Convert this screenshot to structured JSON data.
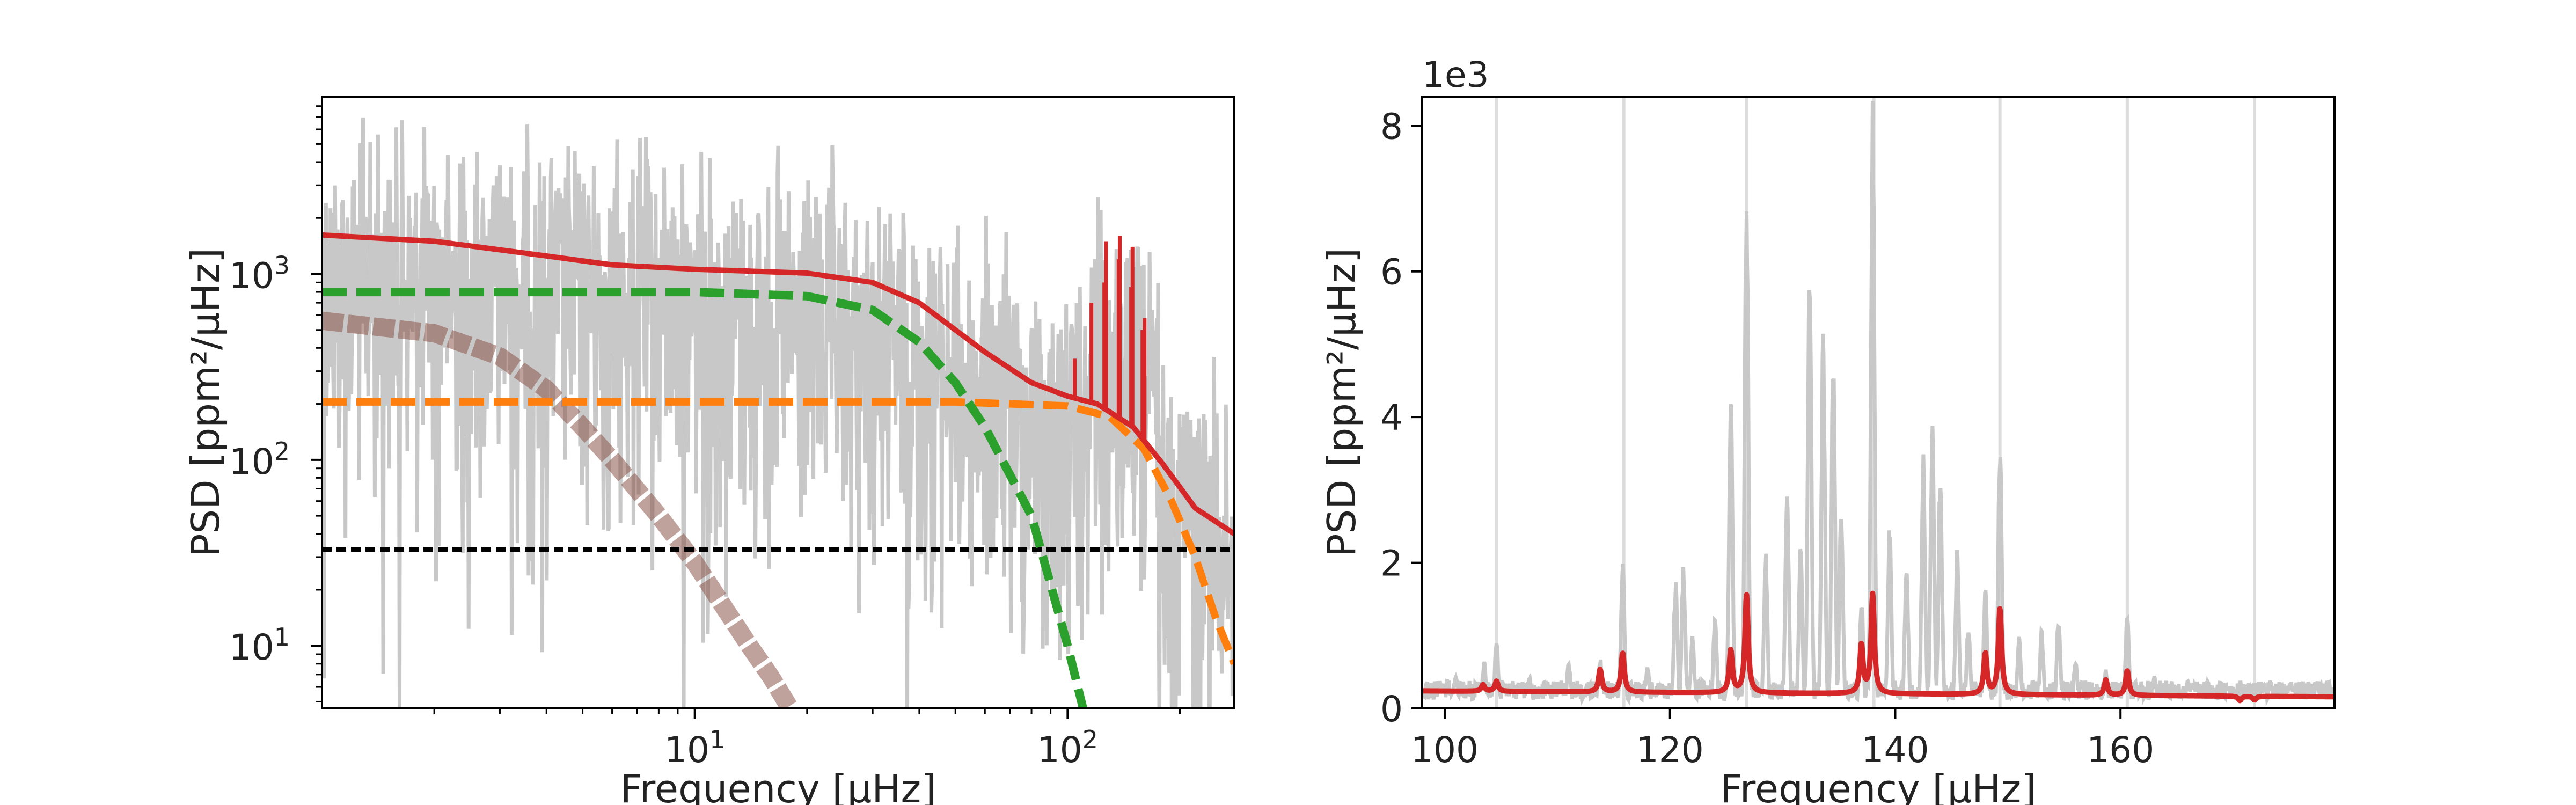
{
  "chart_data": [
    {
      "type": "line",
      "xscale": "log",
      "yscale": "log",
      "xlim": [
        1,
        280
      ],
      "ylim": [
        4.6,
        9000
      ],
      "xlabel": "Frequency [μHz]",
      "ylabel": "PSD [ppm²/μHz]",
      "xticks": [
        {
          "value": 10,
          "base": "10",
          "exp": "1"
        },
        {
          "value": 100,
          "base": "10",
          "exp": "2"
        }
      ],
      "yticks": [
        {
          "value": 10,
          "base": "10",
          "exp": "1"
        },
        {
          "value": 100,
          "base": "10",
          "exp": "2"
        },
        {
          "value": 1000,
          "base": "10",
          "exp": "3"
        }
      ],
      "series": [
        {
          "role": "observed spectrum",
          "color": "#c8c8c8",
          "approx_level_low_freq": 2500,
          "approx_level_at_10": 1800,
          "approx_level_at_100": 350,
          "approx_level_at_280": 80
        },
        {
          "role": "model total",
          "color": "#d62728",
          "x": [
            1,
            2,
            4,
            6,
            10,
            20,
            30,
            40,
            60,
            80,
            100,
            120,
            150,
            180,
            220,
            280
          ],
          "y": [
            1620,
            1500,
            1250,
            1120,
            1060,
            1010,
            900,
            700,
            380,
            260,
            220,
            200,
            150,
            95,
            55,
            40
          ]
        },
        {
          "role": "background component 1",
          "color": "#2ca02c",
          "dash": "dashed",
          "x": [
            1,
            10,
            20,
            30,
            40,
            50,
            60,
            80,
            100,
            110
          ],
          "y": [
            800,
            800,
            760,
            640,
            430,
            260,
            150,
            50,
            10,
            4.6
          ]
        },
        {
          "role": "background component 2",
          "color": "#ff7f0e",
          "dash": "dashed",
          "x": [
            1,
            50,
            100,
            130,
            160,
            190,
            220,
            250,
            280
          ],
          "y": [
            205,
            205,
            195,
            170,
            115,
            60,
            30,
            14,
            8
          ]
        },
        {
          "role": "white noise",
          "color": "#000000",
          "dash": "dotted",
          "x": [
            1,
            280
          ],
          "y": [
            33,
            33
          ]
        },
        {
          "role": "granulation component",
          "color": "#8c564b",
          "dash": "dashed",
          "x": [
            1,
            2,
            3,
            4,
            5,
            6,
            8,
            10,
            12,
            14,
            16,
            18
          ],
          "y": [
            560,
            480,
            360,
            240,
            150,
            100,
            50,
            28,
            16,
            10,
            6.8,
            4.6
          ]
        },
        {
          "role": "model oscillation peaks",
          "color": "#d62728",
          "x": [
            104.5,
            115.8,
            125.4,
            126.8,
            137,
            138,
            148,
            149.3,
            158.7,
            160.9
          ],
          "y": [
            350,
            700,
            900,
            1500,
            1200,
            1600,
            850,
            1400,
            500,
            580
          ]
        }
      ]
    },
    {
      "type": "line",
      "xlim": [
        98,
        179
      ],
      "ylim": [
        0,
        8400
      ],
      "offset_text": "1e3",
      "xlabel": "Frequency [μHz]",
      "ylabel": "PSD [ppm²/μHz]",
      "xticks": [
        {
          "value": 100,
          "label": "100"
        },
        {
          "value": 120,
          "label": "120"
        },
        {
          "value": 140,
          "label": "140"
        },
        {
          "value": 160,
          "label": "160"
        }
      ],
      "yticks": [
        {
          "value": 0,
          "label": "0"
        },
        {
          "value": 2000,
          "label": "2"
        },
        {
          "value": 4000,
          "label": "4"
        },
        {
          "value": 6000,
          "label": "6"
        },
        {
          "value": 8000,
          "label": "8"
        }
      ],
      "vertical_lines": [
        104.6,
        115.9,
        126.8,
        138.1,
        149.3,
        160.6,
        171.9
      ],
      "series": [
        {
          "role": "observed spectrum",
          "color": "#c8c8c8",
          "peaks": [
            {
              "x": 101.0,
              "y": 450
            },
            {
              "x": 103.5,
              "y": 650
            },
            {
              "x": 104.6,
              "y": 950
            },
            {
              "x": 107.5,
              "y": 450
            },
            {
              "x": 111.0,
              "y": 650
            },
            {
              "x": 113.8,
              "y": 700
            },
            {
              "x": 115.8,
              "y": 2100
            },
            {
              "x": 118.0,
              "y": 600
            },
            {
              "x": 120.5,
              "y": 1800
            },
            {
              "x": 121.2,
              "y": 2000
            },
            {
              "x": 122.0,
              "y": 1000
            },
            {
              "x": 124.0,
              "y": 1300
            },
            {
              "x": 125.4,
              "y": 4600
            },
            {
              "x": 126.8,
              "y": 7400
            },
            {
              "x": 128.5,
              "y": 2200
            },
            {
              "x": 130.4,
              "y": 3100
            },
            {
              "x": 131.6,
              "y": 2300
            },
            {
              "x": 132.4,
              "y": 6600
            },
            {
              "x": 133.6,
              "y": 5200
            },
            {
              "x": 134.5,
              "y": 5000
            },
            {
              "x": 135.2,
              "y": 2800
            },
            {
              "x": 137.0,
              "y": 1600
            },
            {
              "x": 138.0,
              "y": 8400
            },
            {
              "x": 139.5,
              "y": 2600
            },
            {
              "x": 141.0,
              "y": 2000
            },
            {
              "x": 142.5,
              "y": 3500
            },
            {
              "x": 143.3,
              "y": 4000
            },
            {
              "x": 144.0,
              "y": 3300
            },
            {
              "x": 145.5,
              "y": 2200
            },
            {
              "x": 146.5,
              "y": 1200
            },
            {
              "x": 148.0,
              "y": 1700
            },
            {
              "x": 149.3,
              "y": 3800
            },
            {
              "x": 151.0,
              "y": 1000
            },
            {
              "x": 153.0,
              "y": 1100
            },
            {
              "x": 154.5,
              "y": 1300
            },
            {
              "x": 156.0,
              "y": 700
            },
            {
              "x": 158.7,
              "y": 550
            },
            {
              "x": 160.6,
              "y": 1300
            },
            {
              "x": 163.0,
              "y": 450
            },
            {
              "x": 166.0,
              "y": 400
            },
            {
              "x": 171.5,
              "y": 300
            },
            {
              "x": 175.0,
              "y": 350
            }
          ]
        },
        {
          "role": "model fit",
          "color": "#d62728",
          "baseline": 240,
          "peaks": [
            {
              "x": 103.4,
              "y": 330
            },
            {
              "x": 104.6,
              "y": 380
            },
            {
              "x": 113.8,
              "y": 550
            },
            {
              "x": 115.8,
              "y": 780
            },
            {
              "x": 125.4,
              "y": 820
            },
            {
              "x": 126.8,
              "y": 1580
            },
            {
              "x": 137.0,
              "y": 900
            },
            {
              "x": 138.0,
              "y": 1600
            },
            {
              "x": 148.0,
              "y": 800
            },
            {
              "x": 149.3,
              "y": 1420
            },
            {
              "x": 158.7,
              "y": 450
            },
            {
              "x": 160.6,
              "y": 580
            },
            {
              "x": 170.6,
              "y": 180
            },
            {
              "x": 171.9,
              "y": 190
            }
          ]
        }
      ]
    }
  ]
}
